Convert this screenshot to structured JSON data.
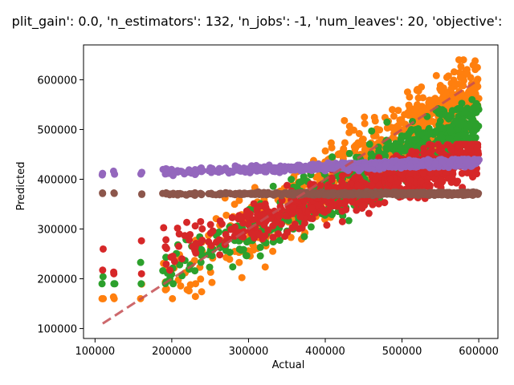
{
  "chart_data": {
    "type": "scatter",
    "title": "plit_gain': 0.0, 'n_estimators': 132, 'n_jobs': -1, 'num_leaves': 20, 'objective':",
    "xlabel": "Actual",
    "ylabel": "Predicted",
    "xlim": [
      85000,
      625000
    ],
    "ylim": [
      80000,
      670000
    ],
    "x_ticks": [
      100000,
      200000,
      300000,
      400000,
      500000,
      600000
    ],
    "y_ticks": [
      100000,
      200000,
      300000,
      400000,
      500000,
      600000
    ],
    "x_tick_labels": [
      "100000",
      "200000",
      "300000",
      "400000",
      "500000",
      "600000"
    ],
    "y_tick_labels": [
      "100000",
      "200000",
      "300000",
      "400000",
      "500000",
      "600000"
    ],
    "grid": false,
    "reference_line": {
      "x": [
        110000,
        600000
      ],
      "y": [
        110000,
        600000
      ],
      "color": "#c44e52",
      "style": "dashed"
    },
    "series": [
      {
        "color": "#ff7f0e",
        "x_range": [
          110000,
          600000
        ],
        "y_range": [
          160000,
          640000
        ],
        "center_slope": 0.95,
        "center_intercept": 10000,
        "spread": 70000
      },
      {
        "color": "#2ca02c",
        "x_range": [
          110000,
          600000
        ],
        "y_range": [
          190000,
          560000
        ],
        "center_slope": 0.75,
        "center_intercept": 70000,
        "spread": 55000
      },
      {
        "color": "#d62728",
        "x_range": [
          110000,
          600000
        ],
        "y_range": [
          210000,
          470000
        ],
        "center_slope": 0.45,
        "center_intercept": 180000,
        "spread": 45000
      },
      {
        "color": "#8c564b",
        "x_range": [
          110000,
          600000
        ],
        "y_range": [
          365000,
          378000
        ],
        "center_slope": 0.0,
        "center_intercept": 371000,
        "spread": 3000
      },
      {
        "color": "#9467bd",
        "x_range": [
          110000,
          600000
        ],
        "y_range": [
          400000,
          440000
        ],
        "center_slope": 0.05,
        "center_intercept": 405000,
        "spread": 7000
      }
    ]
  }
}
